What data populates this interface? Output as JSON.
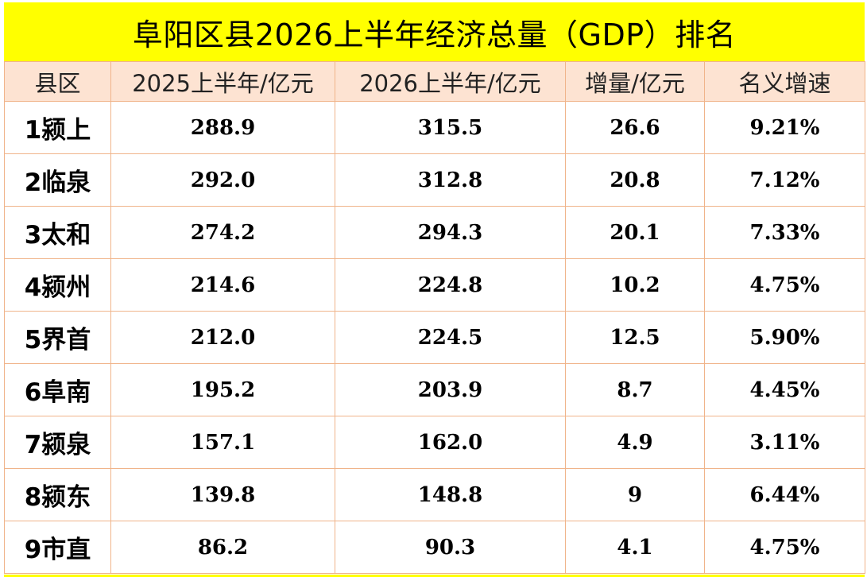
{
  "title": "阜阳区县2026上半年经济总量（GDP）排名",
  "colors": {
    "title_background": "#ffff00",
    "header_background": "#fde3d2",
    "grid_lines": "#f0b48a"
  },
  "table": {
    "headers": [
      "县区",
      "2025上半年/亿元",
      "2026上半年/亿元",
      "增量/亿元",
      "名义增速"
    ],
    "rows": [
      [
        "1颍上",
        "288.9",
        "315.5",
        "26.6",
        "9.21%"
      ],
      [
        "2临泉",
        "292.0",
        "312.8",
        "20.8",
        "7.12%"
      ],
      [
        "3太和",
        "274.2",
        "294.3",
        "20.1",
        "7.33%"
      ],
      [
        "4颍州",
        "214.6",
        "224.8",
        "10.2",
        "4.75%"
      ],
      [
        "5界首",
        "212.0",
        "224.5",
        "12.5",
        "5.90%"
      ],
      [
        "6阜南",
        "195.2",
        "203.9",
        "8.7",
        "4.45%"
      ],
      [
        "7颍泉",
        "157.1",
        "162.0",
        "4.9",
        "3.11%"
      ],
      [
        "8颍东",
        "139.8",
        "148.8",
        "9",
        "6.44%"
      ],
      [
        "9市直",
        "86.2",
        "90.3",
        "4.1",
        "4.75%"
      ]
    ]
  }
}
